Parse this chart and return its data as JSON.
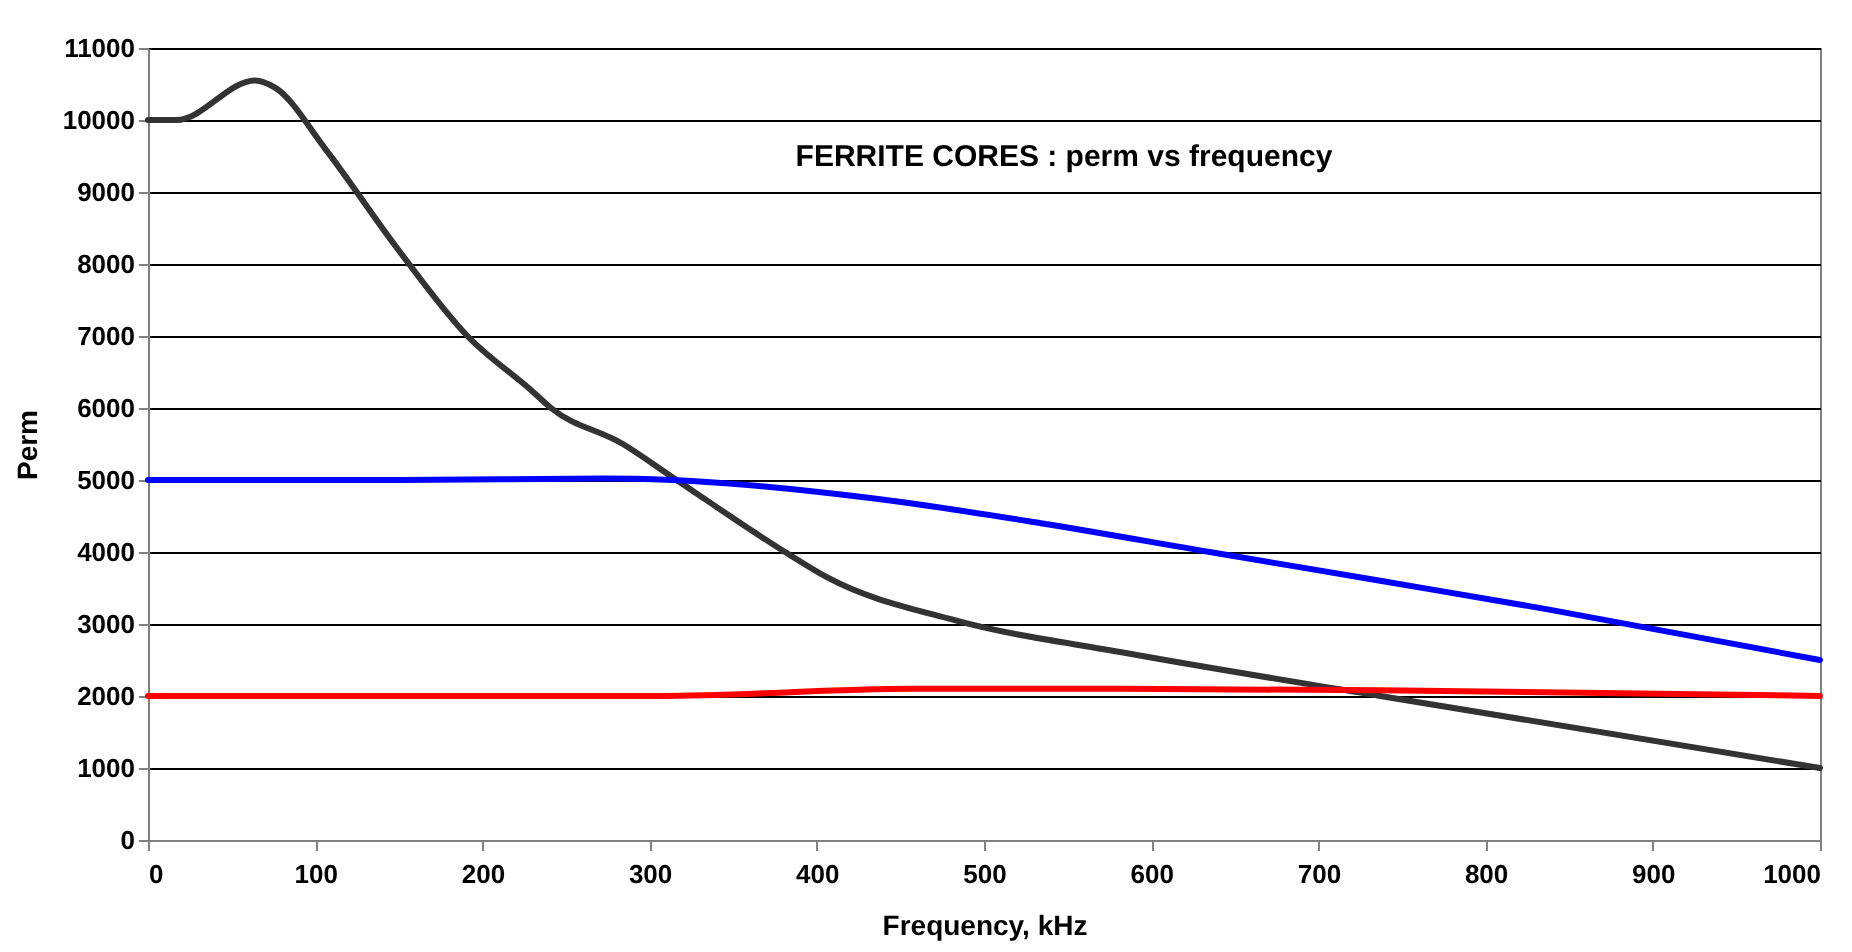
{
  "chart_data": {
    "type": "line",
    "title": "FERRITE CORES : perm vs frequency",
    "xlabel": "Frequency, kHz",
    "ylabel": "Perm",
    "xlim": [
      0,
      1000
    ],
    "xticks": [
      0,
      100,
      200,
      300,
      400,
      500,
      600,
      700,
      800,
      900,
      1000
    ],
    "ylim": [
      0,
      11000
    ],
    "yticks": [
      0,
      1000,
      2000,
      3000,
      4000,
      5000,
      6000,
      7000,
      8000,
      9000,
      10000,
      11000
    ],
    "grid": "y",
    "legend": false,
    "marker": "none",
    "line_style": "solid",
    "series": [
      {
        "color": "#333333",
        "x": [
          0,
          17,
          64,
          76,
          106,
          148,
          191,
          229,
          241,
          284,
          313,
          381,
          406,
          483,
          584,
          737,
          1000
        ],
        "values": [
          10000,
          10000,
          10550,
          10450,
          9600,
          8250,
          7000,
          6250,
          6000,
          5500,
          5050,
          4000,
          3650,
          3050,
          2600,
          2000,
          1000
        ]
      },
      {
        "color": "#0000ff",
        "x": [
          0,
          150,
          272,
          313,
          432,
          534,
          635,
          737,
          838,
          1000
        ],
        "values": [
          5000,
          5000,
          5020,
          5000,
          4750,
          4400,
          4000,
          3600,
          3200,
          2500
        ]
      },
      {
        "color": "#ff0000",
        "x": [
          0,
          150,
          305,
          457,
          584,
          737,
          1000
        ],
        "values": [
          2000,
          2000,
          2000,
          2100,
          2100,
          2080,
          2000
        ]
      }
    ]
  }
}
